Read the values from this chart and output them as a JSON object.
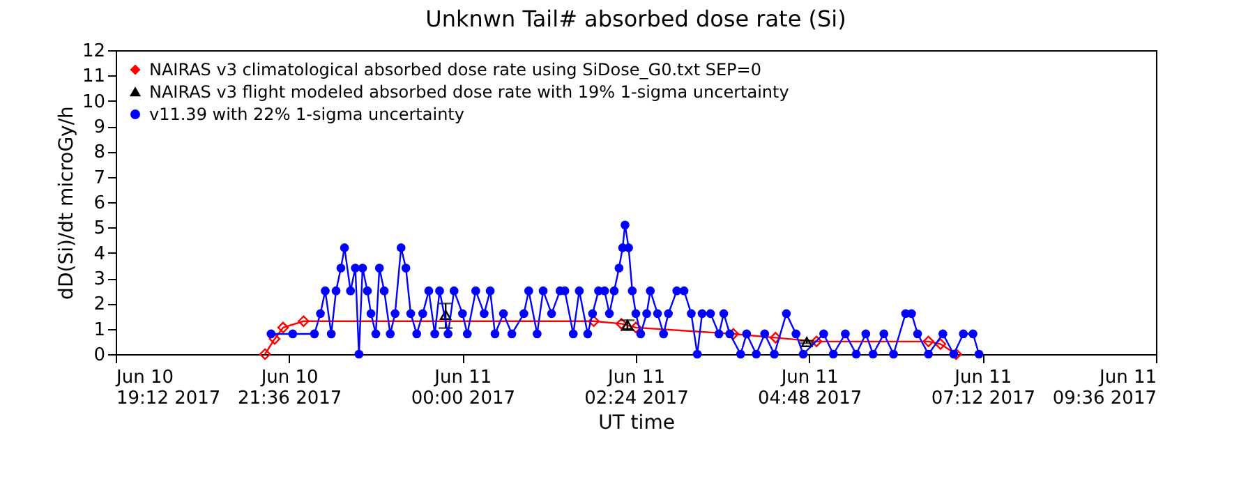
{
  "chart_data": {
    "type": "line",
    "title": "Unknwn Tail#  absorbed dose rate (Si)",
    "xlabel": "UT time",
    "ylabel": "dD(Si)/dt microGy/h",
    "xlim": [
      "2017-06-10T19:12",
      "2017-06-11T09:36"
    ],
    "xticks": [
      {
        "value": "2017-06-10T19:12",
        "label": "Jun 10\n19:12 2017"
      },
      {
        "value": "2017-06-10T21:36",
        "label": "Jun 10\n21:36 2017"
      },
      {
        "value": "2017-06-11T00:00",
        "label": "Jun 11\n00:00 2017"
      },
      {
        "value": "2017-06-11T02:24",
        "label": "Jun 11\n02:24 2017"
      },
      {
        "value": "2017-06-11T04:48",
        "label": "Jun 11\n04:48 2017"
      },
      {
        "value": "2017-06-11T07:12",
        "label": "Jun 11\n07:12 2017"
      },
      {
        "value": "2017-06-11T09:36",
        "label": "Jun 11\n09:36 2017"
      }
    ],
    "ylim": [
      0,
      12
    ],
    "yticks": [
      0,
      1,
      2,
      3,
      4,
      5,
      6,
      7,
      8,
      9,
      10,
      11,
      12
    ],
    "grid": false,
    "legend": "top left",
    "series": [
      {
        "name": "NAIRAS v3 climatological absorbed dose rate using SiDose_G0.txt SEP=0",
        "marker": "diamond",
        "color": "#ff0000",
        "x": [
          "2017-06-10T21:16",
          "2017-06-10T21:24",
          "2017-06-10T21:31",
          "2017-06-10T21:48",
          "2017-06-11T01:49",
          "2017-06-11T02:12",
          "2017-06-11T02:24",
          "2017-06-11T03:45",
          "2017-06-11T04:20",
          "2017-06-11T04:54",
          "2017-06-11T06:27",
          "2017-06-11T06:37",
          "2017-06-11T06:50"
        ],
        "values": [
          0,
          0.6,
          1.05,
          1.3,
          1.3,
          1.2,
          1.05,
          0.8,
          0.65,
          0.5,
          0.5,
          0.4,
          0
        ]
      },
      {
        "name": "NAIRAS v3 flight modeled absorbed dose rate with 19% 1-sigma uncertainty",
        "type": "scatter",
        "marker": "triangle",
        "color": "#000000",
        "x": [
          "2017-06-10T23:46",
          "2017-06-11T02:17",
          "2017-06-11T04:46"
        ],
        "values": [
          1.55,
          1.16,
          0.48
        ],
        "errors": [
          [
            1.03,
            2.0
          ],
          [
            0.94,
            1.34
          ],
          0.05
        ]
      },
      {
        "name": "v11.39 with 22% 1-sigma uncertainty",
        "marker": "circle",
        "color": "#0000ff",
        "x": [
          "2017-06-10T21:21",
          "2017-06-10T21:39",
          "2017-06-10T21:57",
          "2017-06-10T22:02",
          "2017-06-10T22:06",
          "2017-06-10T22:11",
          "2017-06-10T22:15",
          "2017-06-10T22:19",
          "2017-06-10T22:22",
          "2017-06-10T22:27",
          "2017-06-10T22:31",
          "2017-06-10T22:34",
          "2017-06-10T22:37",
          "2017-06-10T22:41",
          "2017-06-10T22:44",
          "2017-06-10T22:48",
          "2017-06-10T22:51",
          "2017-06-10T22:55",
          "2017-06-10T23:00",
          "2017-06-10T23:04",
          "2017-06-10T23:09",
          "2017-06-10T23:13",
          "2017-06-10T23:17",
          "2017-06-10T23:22",
          "2017-06-10T23:27",
          "2017-06-10T23:32",
          "2017-06-10T23:37",
          "2017-06-10T23:41",
          "2017-06-10T23:48",
          "2017-06-10T23:53",
          "2017-06-11T00:00",
          "2017-06-11T00:04",
          "2017-06-11T00:11",
          "2017-06-11T00:18",
          "2017-06-11T00:23",
          "2017-06-11T00:27",
          "2017-06-11T00:34",
          "2017-06-11T00:41",
          "2017-06-11T00:51",
          "2017-06-11T00:55",
          "2017-06-11T01:02",
          "2017-06-11T01:07",
          "2017-06-11T01:14",
          "2017-06-11T01:21",
          "2017-06-11T01:25",
          "2017-06-11T01:32",
          "2017-06-11T01:37",
          "2017-06-11T01:44",
          "2017-06-11T01:48",
          "2017-06-11T01:53",
          "2017-06-11T01:58",
          "2017-06-11T02:02",
          "2017-06-11T02:06",
          "2017-06-11T02:10",
          "2017-06-11T02:13",
          "2017-06-11T02:15",
          "2017-06-11T02:18",
          "2017-06-11T02:21",
          "2017-06-11T02:24",
          "2017-06-11T02:28",
          "2017-06-11T02:33",
          "2017-06-11T02:36",
          "2017-06-11T02:42",
          "2017-06-11T02:47",
          "2017-06-11T02:51",
          "2017-06-11T02:58",
          "2017-06-11T03:04",
          "2017-06-11T03:10",
          "2017-06-11T03:15",
          "2017-06-11T03:19",
          "2017-06-11T03:26",
          "2017-06-11T03:33",
          "2017-06-11T03:37",
          "2017-06-11T03:42",
          "2017-06-11T03:51",
          "2017-06-11T03:56",
          "2017-06-11T04:04",
          "2017-06-11T04:11",
          "2017-06-11T04:19",
          "2017-06-11T04:29",
          "2017-06-11T04:37",
          "2017-06-11T04:43",
          "2017-06-11T05:00",
          "2017-06-11T05:08",
          "2017-06-11T05:18",
          "2017-06-11T05:27",
          "2017-06-11T05:35",
          "2017-06-11T05:41",
          "2017-06-11T05:50",
          "2017-06-11T05:58",
          "2017-06-11T06:08",
          "2017-06-11T06:13",
          "2017-06-11T06:18",
          "2017-06-11T06:27",
          "2017-06-11T06:39",
          "2017-06-11T06:48",
          "2017-06-11T06:56",
          "2017-06-11T07:04",
          "2017-06-11T07:09"
        ],
        "values": [
          0.8,
          0.8,
          0.8,
          1.6,
          2.5,
          0.8,
          2.5,
          3.4,
          4.2,
          2.5,
          3.4,
          0,
          3.4,
          2.5,
          1.6,
          0.8,
          3.4,
          2.5,
          0.8,
          1.6,
          4.2,
          3.4,
          1.6,
          0.8,
          1.6,
          2.5,
          0.8,
          2.5,
          0.8,
          2.5,
          1.6,
          0.8,
          2.5,
          1.6,
          2.5,
          0.8,
          1.6,
          0.8,
          1.6,
          2.5,
          0.8,
          2.5,
          1.6,
          2.5,
          2.5,
          0.8,
          2.5,
          0.8,
          1.6,
          2.5,
          2.5,
          1.6,
          2.5,
          3.4,
          4.2,
          5.1,
          4.2,
          2.5,
          1.6,
          0.8,
          1.6,
          2.5,
          1.6,
          0.8,
          1.6,
          2.5,
          2.5,
          1.6,
          0,
          1.6,
          1.6,
          0.8,
          1.6,
          0.8,
          0,
          0.8,
          0,
          0.8,
          0,
          1.6,
          0.8,
          0,
          0.8,
          0,
          0.8,
          0,
          0.8,
          0,
          0.8,
          0,
          1.6,
          1.6,
          0.8,
          0,
          0.8,
          0,
          0.8,
          0.8,
          0
        ]
      }
    ]
  }
}
